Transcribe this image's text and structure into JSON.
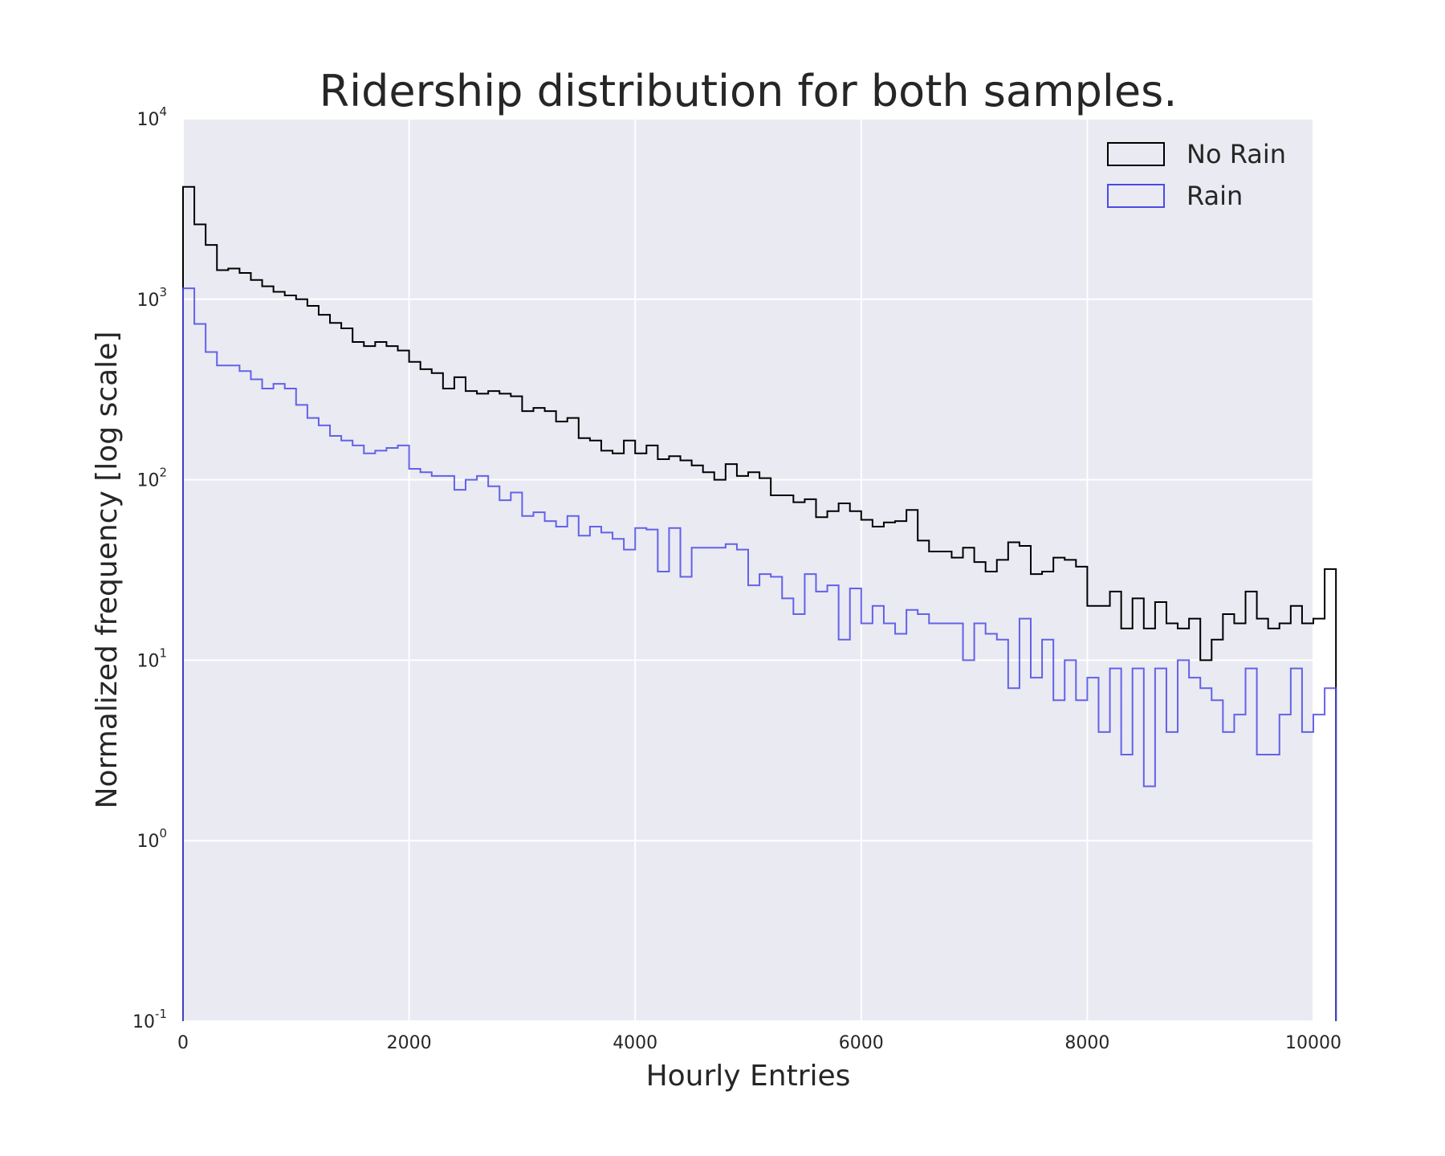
{
  "chart_data": {
    "type": "step-histogram",
    "title": "Ridership distribution for both samples.",
    "xlabel": "Hourly Entries",
    "ylabel": "Normalized frequency [log scale]",
    "xlim": [
      0,
      10000
    ],
    "ylim": [
      0.1,
      10000
    ],
    "y_scale": "log",
    "grid": true,
    "legend_position": "top-right",
    "x_ticks": [
      {
        "value": 0,
        "label": "0"
      },
      {
        "value": 2000,
        "label": "2000"
      },
      {
        "value": 4000,
        "label": "4000"
      },
      {
        "value": 6000,
        "label": "6000"
      },
      {
        "value": 8000,
        "label": "8000"
      },
      {
        "value": 10000,
        "label": "10000"
      }
    ],
    "y_ticks": [
      {
        "value": 0.1,
        "base": "10",
        "exp": "-1"
      },
      {
        "value": 1,
        "base": "10",
        "exp": "0"
      },
      {
        "value": 10,
        "base": "10",
        "exp": "1"
      },
      {
        "value": 100,
        "base": "10",
        "exp": "2"
      },
      {
        "value": 1000,
        "base": "10",
        "exp": "3"
      },
      {
        "value": 10000,
        "base": "10",
        "exp": "4"
      }
    ],
    "bin_edges_start": 0,
    "bin_width": 100,
    "series": [
      {
        "name": "No Rain",
        "color": "#000000",
        "values": [
          4200,
          2600,
          2000,
          1450,
          1480,
          1400,
          1280,
          1180,
          1100,
          1050,
          1000,
          920,
          820,
          740,
          690,
          580,
          550,
          580,
          550,
          520,
          450,
          410,
          390,
          320,
          370,
          310,
          300,
          310,
          300,
          290,
          240,
          250,
          240,
          210,
          220,
          170,
          165,
          145,
          140,
          165,
          140,
          155,
          130,
          135,
          128,
          120,
          110,
          100,
          122,
          105,
          110,
          102,
          82,
          82,
          75,
          78,
          62,
          67,
          74,
          67,
          60,
          55,
          58,
          59,
          68,
          46,
          40,
          40,
          37,
          42,
          35,
          31,
          36,
          45,
          43,
          30,
          31,
          37,
          36,
          33,
          20,
          20,
          24,
          15,
          22,
          15,
          21,
          16,
          15,
          17,
          10,
          13,
          18,
          16,
          24,
          17,
          15,
          16,
          20,
          16,
          17,
          32
        ]
      },
      {
        "name": "Rain",
        "color": "#4a4ae8",
        "values": [
          1150,
          730,
          510,
          430,
          430,
          400,
          360,
          320,
          340,
          320,
          260,
          220,
          200,
          175,
          165,
          155,
          140,
          145,
          150,
          155,
          115,
          110,
          105,
          105,
          88,
          100,
          105,
          92,
          77,
          85,
          63,
          66,
          59,
          55,
          63,
          49,
          55,
          51,
          47,
          41,
          54,
          53,
          31,
          54,
          29,
          42,
          42,
          42,
          44,
          41,
          26,
          30,
          29,
          22,
          18,
          30,
          24,
          26,
          13,
          25,
          16,
          20,
          16,
          14,
          19,
          18,
          16,
          16,
          16,
          10,
          16,
          14,
          13,
          7,
          17,
          8,
          13,
          6,
          10,
          6,
          8,
          4,
          9,
          3,
          9,
          2,
          9,
          4,
          10,
          8,
          7,
          6,
          4,
          5,
          9,
          3,
          3,
          5,
          9,
          4,
          5,
          7
        ]
      }
    ]
  }
}
